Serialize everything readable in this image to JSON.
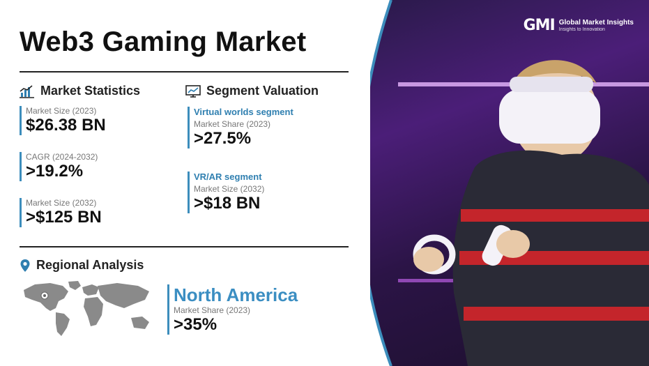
{
  "header": {
    "title": "Web3 Gaming Market"
  },
  "market_statistics": {
    "heading": "Market Statistics",
    "icon": "bar-chart-icon",
    "items": [
      {
        "label": "Market Size (2023)",
        "value": "$26.38 BN"
      },
      {
        "label": "CAGR (2024-2032)",
        "value": ">19.2%"
      },
      {
        "label": "Market Size (2032)",
        "value": ">$125 BN"
      }
    ]
  },
  "segment_valuation": {
    "heading": "Segment Valuation",
    "icon": "monitor-chart-icon",
    "items": [
      {
        "segment": "Virtual worlds segment",
        "label": "Market Share (2023)",
        "value": ">27.5%"
      },
      {
        "segment": "VR/AR segment",
        "label": "Market Size (2032)",
        "value": ">$18 BN"
      }
    ]
  },
  "regional_analysis": {
    "heading": "Regional Analysis",
    "icon": "location-pin-icon",
    "region": "North America",
    "label": "Market Share (2023)",
    "value": ">35%"
  },
  "brand": {
    "mark": "GMI",
    "name": "Global Market Insights",
    "tagline": "Insights to Innovation"
  },
  "colors": {
    "accent": "#3b8ec2",
    "frame": "#3c8dbc",
    "photo_bg": "#4b1e78"
  }
}
